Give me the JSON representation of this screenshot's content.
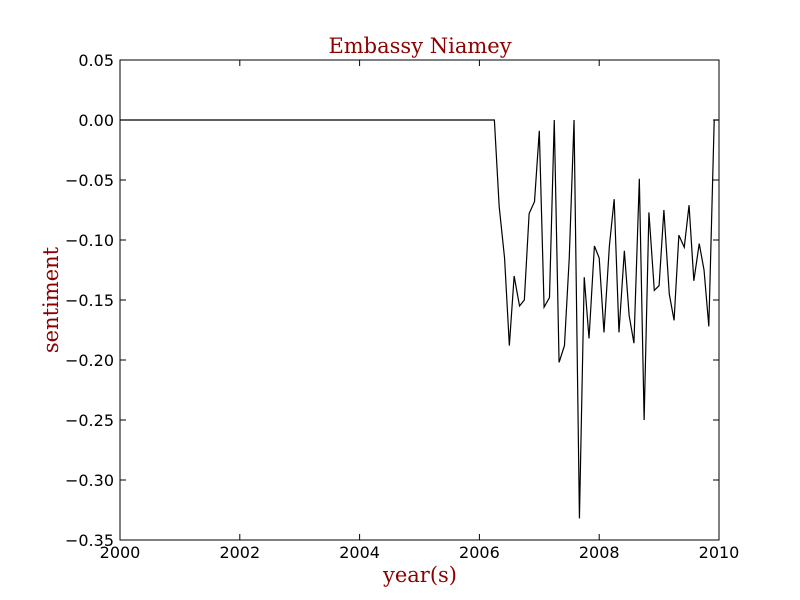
{
  "chart_data": {
    "type": "line",
    "title": "Embassy Niamey",
    "xlabel": "year(s)",
    "ylabel": "sentiment",
    "xlim": [
      2000,
      2010
    ],
    "ylim": [
      -0.35,
      0.05
    ],
    "xticks": [
      2000,
      2002,
      2004,
      2006,
      2008,
      2010
    ],
    "xtick_labels": [
      "2000",
      "2002",
      "2004",
      "2006",
      "2008",
      "2010"
    ],
    "yticks": [
      0.05,
      0.0,
      -0.05,
      -0.1,
      -0.15,
      -0.2,
      -0.25,
      -0.3,
      -0.35
    ],
    "ytick_labels": [
      "0.05",
      "0.00",
      "−0.05",
      "−0.10",
      "−0.15",
      "−0.20",
      "−0.25",
      "−0.30",
      "−0.35"
    ],
    "grid": false,
    "colors": {
      "line": "#000000",
      "text_accent": "#8b0000",
      "axes": "#000000"
    },
    "series": [
      {
        "name": "sentiment",
        "x": [
          2000.0,
          2006.25,
          2006.33,
          2006.42,
          2006.5,
          2006.58,
          2006.67,
          2006.75,
          2006.83,
          2006.92,
          2007.0,
          2007.08,
          2007.17,
          2007.25,
          2007.33,
          2007.42,
          2007.5,
          2007.58,
          2007.67,
          2007.75,
          2007.83,
          2007.92,
          2008.0,
          2008.08,
          2008.17,
          2008.25,
          2008.33,
          2008.42,
          2008.5,
          2008.58,
          2008.67,
          2008.75,
          2008.83,
          2008.92,
          2009.0,
          2009.08,
          2009.17,
          2009.25,
          2009.33,
          2009.42,
          2009.5,
          2009.58,
          2009.67,
          2009.75,
          2009.83,
          2009.92,
          2010.0
        ],
        "y": [
          0.0,
          0.0,
          -0.072,
          -0.115,
          -0.188,
          -0.13,
          -0.155,
          -0.15,
          -0.078,
          -0.068,
          -0.009,
          -0.156,
          -0.148,
          0.0,
          -0.202,
          -0.188,
          -0.115,
          0.0,
          -0.332,
          -0.131,
          -0.182,
          -0.105,
          -0.115,
          -0.177,
          -0.105,
          -0.066,
          -0.177,
          -0.109,
          -0.163,
          -0.186,
          -0.049,
          -0.25,
          -0.077,
          -0.142,
          -0.138,
          -0.075,
          -0.145,
          -0.167,
          -0.096,
          -0.106,
          -0.071,
          -0.134,
          -0.103,
          -0.125,
          -0.172,
          0.0,
          0.0
        ]
      }
    ]
  }
}
